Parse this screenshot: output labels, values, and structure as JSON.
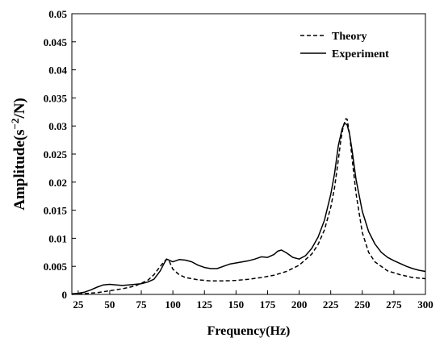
{
  "chart_data": {
    "type": "line",
    "xlabel": "Frequency(Hz)",
    "ylabel_main": "Amplitude(s",
    "ylabel_sup": "−2",
    "ylabel_end": "/N)",
    "xlim": [
      20,
      300
    ],
    "ylim": [
      0,
      0.05
    ],
    "xticks": [
      25,
      50,
      75,
      100,
      125,
      150,
      175,
      200,
      225,
      250,
      275,
      300
    ],
    "yticks": [
      {
        "value": 0,
        "label": "0"
      },
      {
        "value": 0.005,
        "label": "0.005"
      },
      {
        "value": 0.01,
        "label": "0.01"
      },
      {
        "value": 0.015,
        "label": "0.015"
      },
      {
        "value": 0.02,
        "label": "0.02"
      },
      {
        "value": 0.025,
        "label": "0.025"
      },
      {
        "value": 0.03,
        "label": "0.03"
      },
      {
        "value": 0.035,
        "label": "0.035"
      },
      {
        "value": 0.04,
        "label": "0.04"
      },
      {
        "value": 0.045,
        "label": "0.045"
      },
      {
        "value": 0.05,
        "label": "0.05"
      }
    ],
    "grid": false,
    "legend_position": "top-right",
    "series": [
      {
        "name": "Theory",
        "style": "dashed",
        "color": "#000000",
        "x": [
          20,
          40,
          60,
          70,
          80,
          85,
          90,
          93,
          95,
          97,
          100,
          105,
          110,
          120,
          130,
          140,
          150,
          160,
          170,
          180,
          190,
          200,
          210,
          215,
          220,
          225,
          228,
          231,
          233,
          235,
          237,
          238,
          240,
          242,
          245,
          250,
          255,
          260,
          270,
          280,
          290,
          300
        ],
        "y": [
          0,
          0.0003,
          0.001,
          0.0015,
          0.0025,
          0.0035,
          0.005,
          0.0058,
          0.0063,
          0.006,
          0.0045,
          0.0035,
          0.003,
          0.0026,
          0.0024,
          0.0024,
          0.0025,
          0.0027,
          0.003,
          0.0034,
          0.0041,
          0.0052,
          0.0072,
          0.0089,
          0.0115,
          0.0155,
          0.019,
          0.024,
          0.0275,
          0.03,
          0.0313,
          0.0312,
          0.0285,
          0.024,
          0.018,
          0.011,
          0.0075,
          0.0058,
          0.0042,
          0.0035,
          0.003,
          0.0028
        ]
      },
      {
        "name": "Experiment",
        "style": "solid",
        "color": "#000000",
        "x": [
          20,
          25,
          30,
          35,
          40,
          45,
          50,
          55,
          60,
          65,
          70,
          75,
          80,
          85,
          90,
          93,
          95,
          97,
          100,
          105,
          110,
          115,
          120,
          125,
          130,
          135,
          140,
          145,
          150,
          155,
          160,
          165,
          170,
          175,
          180,
          183,
          186,
          190,
          195,
          200,
          205,
          210,
          215,
          220,
          225,
          228,
          231,
          234,
          236,
          238,
          240,
          242,
          245,
          250,
          255,
          260,
          265,
          270,
          275,
          280,
          285,
          290,
          295,
          300
        ],
        "y": [
          0.0001,
          0.0002,
          0.0004,
          0.0008,
          0.0013,
          0.0017,
          0.0018,
          0.0017,
          0.0016,
          0.0017,
          0.0018,
          0.0019,
          0.0022,
          0.0027,
          0.0042,
          0.0055,
          0.0063,
          0.0061,
          0.0058,
          0.0062,
          0.0061,
          0.0058,
          0.0052,
          0.0048,
          0.0046,
          0.0046,
          0.005,
          0.0054,
          0.0056,
          0.0058,
          0.006,
          0.0063,
          0.0067,
          0.0066,
          0.0071,
          0.0077,
          0.0079,
          0.0074,
          0.0066,
          0.0063,
          0.0069,
          0.0082,
          0.0102,
          0.0132,
          0.0178,
          0.0215,
          0.0265,
          0.0295,
          0.0305,
          0.0302,
          0.0285,
          0.0255,
          0.0205,
          0.0148,
          0.0112,
          0.009,
          0.0075,
          0.0066,
          0.006,
          0.0055,
          0.005,
          0.0046,
          0.0043,
          0.0041
        ]
      }
    ]
  }
}
